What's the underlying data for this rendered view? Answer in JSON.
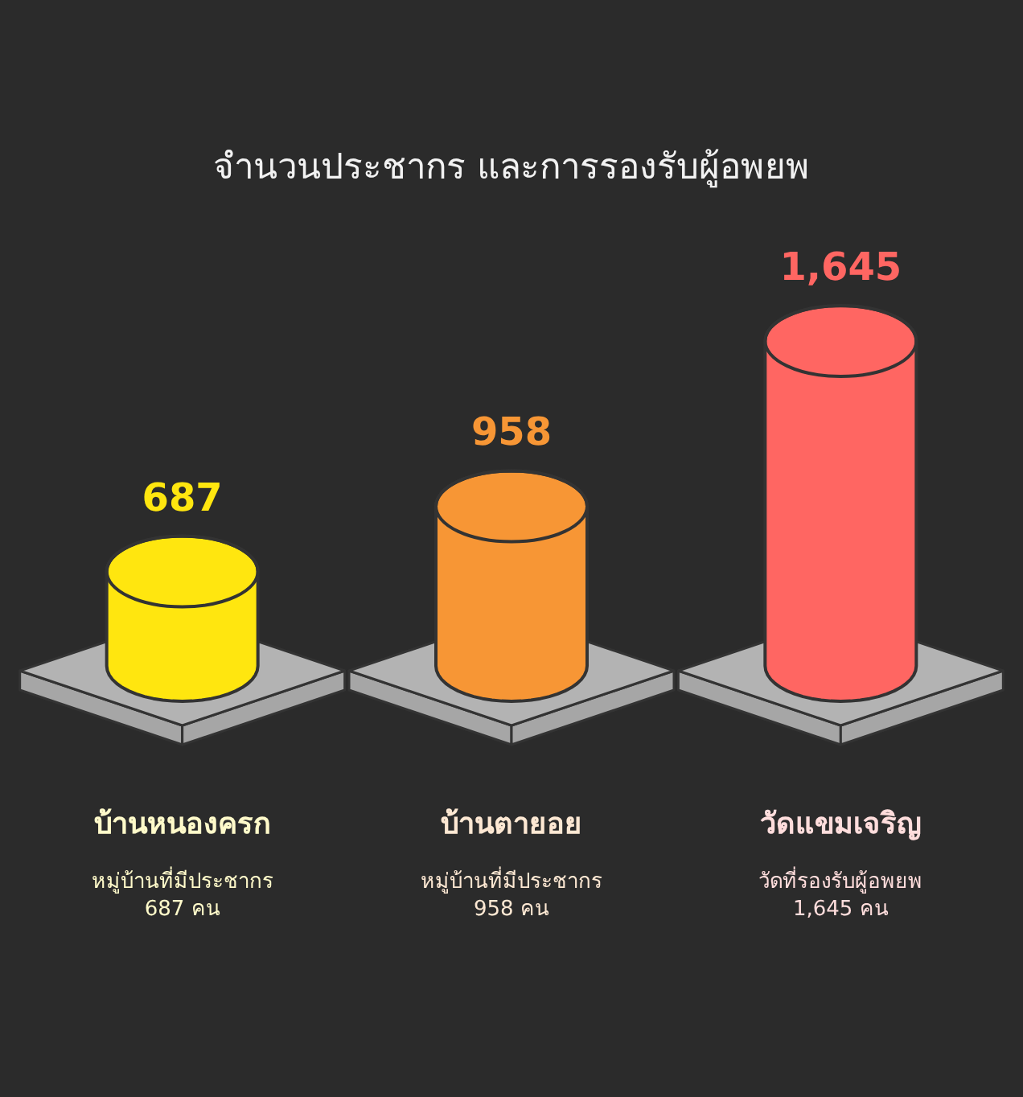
{
  "chart_data": {
    "type": "bar",
    "title": "จำนวนประชากร และการรองรับผู้อพยพ",
    "categories": [
      "บ้านหนองครก",
      "บ้านตายอย",
      "วัดแขมเจริญ"
    ],
    "values": [
      687,
      958,
      1645
    ],
    "colors": [
      "#ffe60f",
      "#f79635",
      "#ff6662"
    ],
    "value_labels": [
      "687",
      "958",
      "1,645"
    ],
    "annotations": [
      "หมู่บ้านที่มีประชากร\n687 คน",
      "หมู่บ้านที่มีประชากร\n958 คน",
      "วัดที่รองรับผู้อพยพ\n1,645 คน"
    ]
  }
}
